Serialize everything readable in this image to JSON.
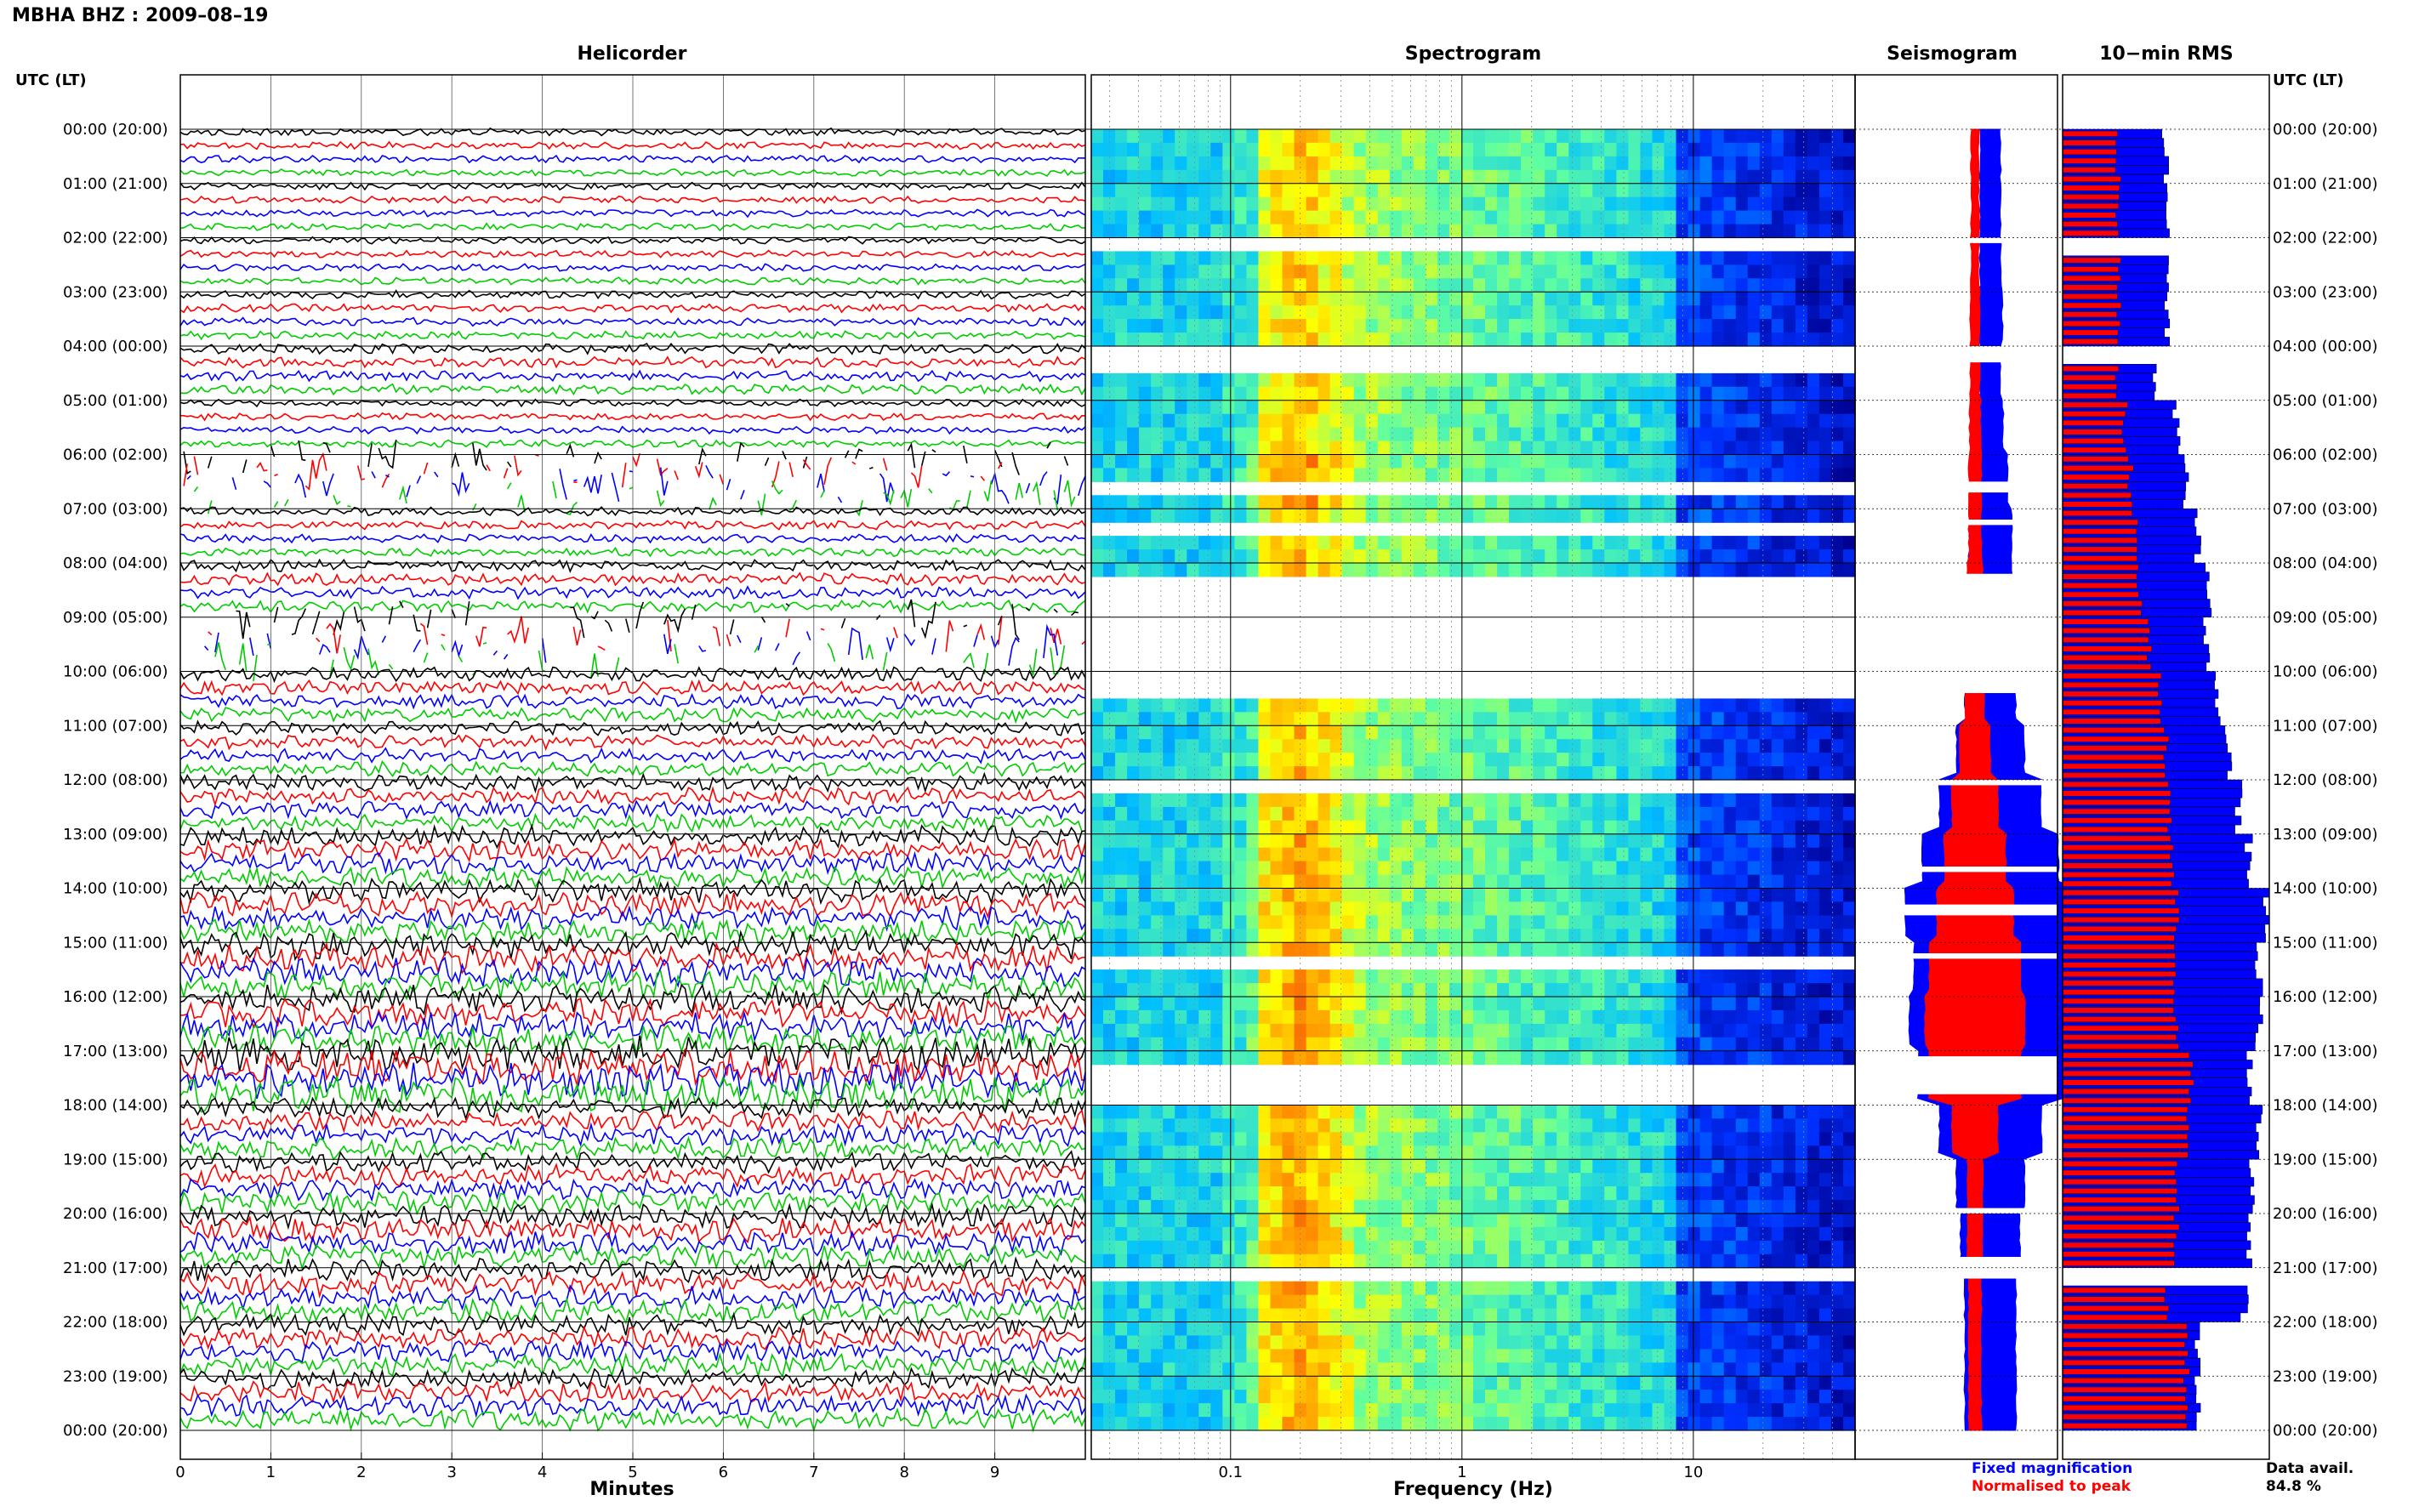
{
  "figure": {
    "title": "MBHA BHZ : 2009–08–19",
    "left_axis_label": "UTC (LT)",
    "right_axis_label": "UTC (LT)",
    "data_availability_label": "Data avail.",
    "data_availability_value": "84.8 %"
  },
  "chart_data": [
    {
      "type": "line",
      "title": "Helicorder",
      "xlabel": "Minutes",
      "xlim": [
        0,
        10
      ],
      "x_ticks": [
        "0",
        "1",
        "2",
        "3",
        "4",
        "5",
        "6",
        "7",
        "8",
        "9"
      ],
      "ylim": [
        0,
        24
      ],
      "y_tick_labels": [
        "00:00 (20:00)",
        "01:00 (21:00)",
        "02:00 (22:00)",
        "03:00 (23:00)",
        "04:00 (00:00)",
        "05:00 (01:00)",
        "06:00 (02:00)",
        "07:00 (03:00)",
        "08:00 (04:00)",
        "09:00 (05:00)",
        "10:00 (06:00)",
        "11:00 (07:00)",
        "12:00 (08:00)",
        "13:00 (09:00)",
        "14:00 (10:00)",
        "15:00 (11:00)",
        "16:00 (12:00)",
        "17:00 (13:00)",
        "18:00 (14:00)",
        "19:00 (15:00)",
        "20:00 (16:00)",
        "21:00 (17:00)",
        "22:00 (18:00)",
        "23:00 (19:00)",
        "00:00 (20:00)"
      ],
      "trace_colors": [
        "#000000",
        "#ff0000",
        "#0000ff",
        "#00cc00"
      ],
      "trace_amplitude_by_hour": [
        0.15,
        0.15,
        0.15,
        0.17,
        0.22,
        0.15,
        0.8,
        0.18,
        0.25,
        0.85,
        0.3,
        0.3,
        0.35,
        0.45,
        0.5,
        0.6,
        0.6,
        0.75,
        0.45,
        0.45,
        0.5,
        0.5,
        0.45,
        0.45
      ],
      "gapped_hours": [
        6,
        9
      ]
    },
    {
      "type": "heatmap",
      "title": "Spectrogram",
      "xlabel": "Frequency (Hz)",
      "x_scale": "log",
      "xlim": [
        0.025,
        50
      ],
      "x_ticks": [
        "0.1",
        "1",
        "10"
      ],
      "ylim": [
        0,
        24
      ],
      "colormap": [
        "#00008f",
        "#0030ff",
        "#00c0ff",
        "#60ffa0",
        "#ffff00",
        "#ff8000",
        "#e00000"
      ],
      "data_gaps_hours": [
        [
          2.0,
          2.1
        ],
        [
          4.0,
          4.3
        ],
        [
          6.5,
          6.7
        ],
        [
          7.2,
          7.3
        ],
        [
          8.2,
          10.4
        ],
        [
          12.0,
          12.1
        ],
        [
          13.6,
          13.7
        ],
        [
          14.3,
          14.5
        ],
        [
          15.2,
          15.3
        ],
        [
          17.1,
          17.8
        ],
        [
          19.9,
          20.0
        ],
        [
          20.8,
          21.2
        ]
      ],
      "peak_frequency_band_hz": [
        0.15,
        0.3
      ]
    },
    {
      "type": "line",
      "title": "Seismogram",
      "series": [
        {
          "name": "Fixed magnification",
          "color": "#0000ff"
        },
        {
          "name": "Normalised to peak",
          "color": "#ff0000"
        }
      ],
      "legend": "bottom",
      "blue_envelope_by_hour": [
        0.12,
        0.12,
        0.12,
        0.14,
        0.12,
        0.15,
        0.2,
        0.25,
        0.25,
        0.3,
        0.3,
        0.4,
        0.6,
        0.8,
        1.0,
        0.9,
        0.95,
        0.85,
        0.6,
        0.4,
        0.35,
        0.3,
        0.3,
        0.3,
        0.3
      ],
      "red_envelope_by_hour": [
        0.05,
        0.05,
        0.05,
        0.06,
        0.06,
        0.07,
        0.08,
        0.08,
        0.1,
        0.12,
        0.12,
        0.2,
        0.3,
        0.4,
        0.5,
        0.6,
        0.65,
        0.6,
        0.3,
        0.1,
        0.1,
        0.08,
        0.08,
        0.08,
        0.08
      ]
    },
    {
      "type": "bar",
      "title": "10−min RMS",
      "orientation": "horizontal",
      "series": [
        {
          "name": "Fixed magnification",
          "color": "#0000ff"
        },
        {
          "name": "Normalised to peak",
          "color": "#ff0000"
        }
      ],
      "blue_relative_by_hour": [
        0.5,
        0.5,
        0.5,
        0.5,
        0.45,
        0.55,
        0.6,
        0.65,
        0.7,
        0.7,
        0.75,
        0.8,
        0.85,
        0.9,
        0.98,
        0.95,
        0.95,
        0.9,
        0.95,
        0.92,
        0.9,
        0.88,
        0.65,
        0.65,
        0.65
      ],
      "red_relative_by_hour": [
        0.27,
        0.27,
        0.27,
        0.27,
        0.27,
        0.3,
        0.33,
        0.35,
        0.37,
        0.42,
        0.47,
        0.5,
        0.52,
        0.53,
        0.55,
        0.55,
        0.55,
        0.62,
        0.6,
        0.55,
        0.55,
        0.5,
        0.6,
        0.6,
        0.6
      ],
      "gapped_hours": [
        2,
        4,
        21
      ]
    }
  ]
}
